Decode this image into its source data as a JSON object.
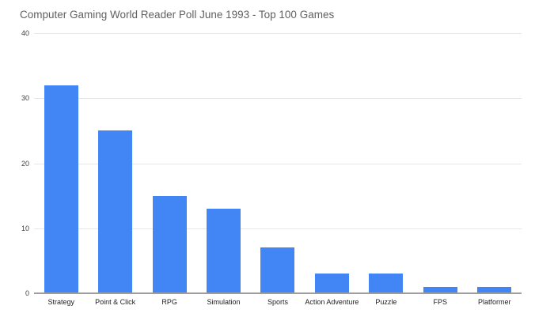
{
  "chart_data": {
    "type": "bar",
    "title": "Computer Gaming World Reader Poll June 1993 - Top 100 Games",
    "categories": [
      "Strategy",
      "Point & Click",
      "RPG",
      "Simulation",
      "Sports",
      "Action Adventure",
      "Puzzle",
      "FPS",
      "Platformer"
    ],
    "values": [
      32,
      25,
      15,
      13,
      7,
      3,
      3,
      1,
      1
    ],
    "xlabel": "",
    "ylabel": "",
    "ylim": [
      0,
      40
    ],
    "yticks": [
      0,
      10,
      20,
      30,
      40
    ],
    "grid": true,
    "legend_position": "none"
  },
  "colors": {
    "bar": "#4285f4",
    "title_text": "#616161",
    "gridline": "#e6e6e6",
    "axis_line": "#9e9e9e",
    "y_label_text": "#424242",
    "x_label_text": "#212121",
    "background": "#ffffff"
  }
}
